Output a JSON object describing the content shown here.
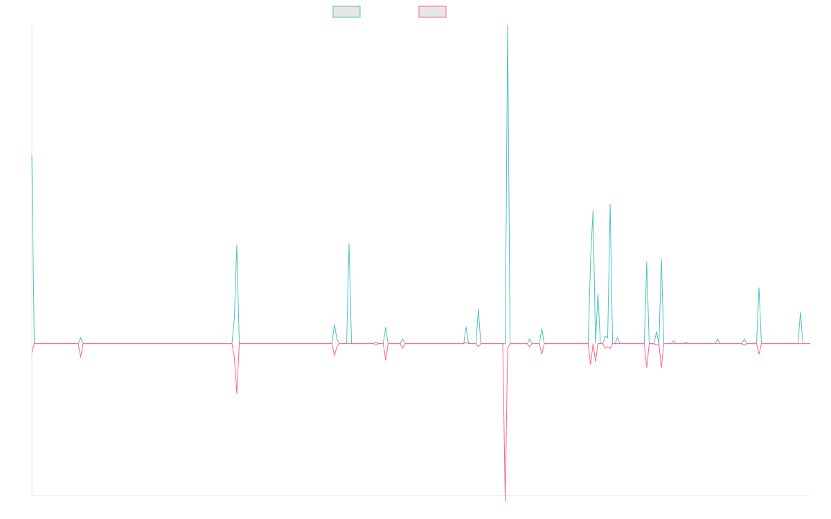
{
  "chart_data": {
    "type": "line",
    "title": "",
    "xlabel": "",
    "ylabel": "",
    "x": [
      0,
      1,
      2,
      3,
      4,
      5,
      6,
      7,
      8,
      9,
      10,
      11,
      12,
      13,
      14,
      15,
      16,
      17,
      18,
      19,
      20,
      21,
      22,
      23,
      24,
      25,
      26,
      27,
      28,
      29,
      30,
      31,
      32,
      33,
      34,
      35,
      36,
      37,
      38,
      39,
      40,
      41,
      42,
      43,
      44,
      45,
      46,
      47,
      48,
      49,
      50,
      51,
      52,
      53,
      54,
      55,
      56,
      57,
      58,
      59,
      60,
      61,
      62,
      63,
      64,
      65,
      66,
      67,
      68,
      69,
      70,
      71,
      72,
      73,
      74,
      75,
      76,
      77,
      78,
      79,
      80,
      81,
      82,
      83,
      84,
      85,
      86,
      87,
      88,
      89,
      90,
      91,
      92,
      93,
      94,
      95,
      96,
      97,
      98,
      99,
      100,
      101,
      102,
      103,
      104,
      105,
      106,
      107,
      108,
      109,
      110,
      111,
      112,
      113,
      114,
      115,
      116,
      117,
      118,
      119,
      120,
      121,
      122,
      123,
      124,
      125,
      126,
      127,
      128,
      129,
      130,
      131,
      132,
      133,
      134,
      135,
      136,
      137,
      138,
      139,
      140,
      141,
      142,
      143,
      144,
      145,
      146,
      147,
      148,
      149,
      150,
      151,
      152,
      153,
      154,
      155,
      156,
      157,
      158,
      159,
      160,
      161,
      162,
      163,
      164,
      165,
      166,
      167,
      168,
      169,
      170,
      171,
      172,
      173,
      174,
      175,
      176,
      177,
      178,
      179,
      180,
      181,
      182,
      183,
      184,
      185,
      186,
      187,
      188,
      189,
      190,
      191,
      192,
      193,
      194,
      195,
      196,
      197,
      198,
      199,
      200,
      201,
      202,
      203,
      204,
      205,
      206,
      207,
      208,
      209,
      210,
      211,
      212,
      213,
      214,
      215,
      216,
      217,
      218,
      219,
      220,
      221,
      222,
      223,
      224,
      225,
      226,
      227,
      228,
      229,
      230,
      231,
      232,
      233,
      234,
      235,
      236,
      237,
      238,
      239,
      240,
      241,
      242,
      243,
      244,
      245,
      246,
      247,
      248,
      249,
      250,
      251,
      252,
      253,
      254,
      255,
      256,
      257,
      258,
      259,
      260,
      261,
      262,
      263,
      264,
      265,
      266,
      267,
      268,
      269,
      270,
      271,
      272,
      273,
      274,
      275,
      276,
      277,
      278,
      279,
      280,
      281,
      282,
      283,
      284,
      285,
      286,
      287,
      288,
      289,
      290,
      291,
      292,
      293,
      294,
      295,
      296,
      297,
      298,
      299,
      300,
      301,
      302,
      303,
      304,
      305,
      306,
      307,
      308,
      309,
      310,
      311,
      312,
      313,
      314,
      315,
      316,
      317,
      318,
      319
    ],
    "ylim": [
      -100,
      210
    ],
    "grid": false,
    "legend_position": "top-center",
    "series": [
      {
        "color": "#4bc0c0",
        "fill": "#e6e6e6",
        "points": [
          [
            0,
            124
          ],
          [
            1,
            0
          ],
          [
            20,
            4
          ],
          [
            21,
            0
          ],
          [
            83,
            17
          ],
          [
            84,
            65
          ],
          [
            85,
            0
          ],
          [
            124,
            13
          ],
          [
            125,
            3
          ],
          [
            126,
            0
          ],
          [
            130,
            66
          ],
          [
            131,
            0
          ],
          [
            140,
            0
          ],
          [
            141,
            -1
          ],
          [
            142,
            0
          ],
          [
            145,
            11
          ],
          [
            146,
            0
          ],
          [
            152,
            3
          ],
          [
            153,
            0
          ],
          [
            178,
            11
          ],
          [
            179,
            0
          ],
          [
            183,
            23
          ],
          [
            184,
            0
          ],
          [
            195,
            210
          ],
          [
            196,
            0
          ],
          [
            204,
            3
          ],
          [
            205,
            0
          ],
          [
            209,
            10
          ],
          [
            210,
            0
          ],
          [
            229,
            56
          ],
          [
            230,
            88
          ],
          [
            231,
            0
          ],
          [
            232,
            33
          ],
          [
            233,
            0
          ],
          [
            235,
            5
          ],
          [
            236,
            4
          ],
          [
            237,
            92
          ],
          [
            238,
            0
          ],
          [
            240,
            4
          ],
          [
            241,
            0
          ],
          [
            244,
            0
          ],
          [
            245,
            0
          ],
          [
            252,
            54
          ],
          [
            253,
            0
          ],
          [
            256,
            8
          ],
          [
            257,
            0
          ],
          [
            258,
            56
          ],
          [
            259,
            0
          ],
          [
            263,
            2
          ],
          [
            264,
            0
          ],
          [
            268,
            1
          ],
          [
            269,
            0
          ],
          [
            281,
            3
          ],
          [
            282,
            0
          ],
          [
            292,
            3
          ],
          [
            293,
            0
          ],
          [
            298,
            37
          ],
          [
            299,
            0
          ],
          [
            315,
            21
          ],
          [
            316,
            0
          ],
          [
            319,
            0
          ]
        ]
      },
      {
        "color": "#ff6384",
        "fill": "#e6e6e6",
        "points": [
          [
            0,
            -6
          ],
          [
            1,
            0
          ],
          [
            20,
            -9
          ],
          [
            21,
            0
          ],
          [
            83,
            -9
          ],
          [
            84,
            -33
          ],
          [
            85,
            0
          ],
          [
            124,
            -8
          ],
          [
            125,
            -2
          ],
          [
            126,
            0
          ],
          [
            130,
            0
          ],
          [
            131,
            0
          ],
          [
            140,
            0
          ],
          [
            141,
            1
          ],
          [
            142,
            0
          ],
          [
            145,
            -11
          ],
          [
            146,
            0
          ],
          [
            152,
            -3
          ],
          [
            153,
            0
          ],
          [
            178,
            1
          ],
          [
            179,
            0
          ],
          [
            183,
            -2
          ],
          [
            184,
            0
          ],
          [
            194,
            -104
          ],
          [
            195,
            -3
          ],
          [
            196,
            0
          ],
          [
            204,
            -2
          ],
          [
            205,
            0
          ],
          [
            209,
            -7
          ],
          [
            210,
            0
          ],
          [
            229,
            -14
          ],
          [
            230,
            0
          ],
          [
            231,
            -12
          ],
          [
            232,
            0
          ],
          [
            235,
            -3
          ],
          [
            236,
            -2
          ],
          [
            237,
            -3
          ],
          [
            238,
            0
          ],
          [
            240,
            0
          ],
          [
            241,
            0
          ],
          [
            244,
            0
          ],
          [
            245,
            0
          ],
          [
            252,
            -16
          ],
          [
            253,
            0
          ],
          [
            256,
            -1
          ],
          [
            257,
            0
          ],
          [
            258,
            -16
          ],
          [
            259,
            0
          ],
          [
            263,
            0
          ],
          [
            264,
            0
          ],
          [
            268,
            0
          ],
          [
            269,
            0
          ],
          [
            281,
            0
          ],
          [
            282,
            0
          ],
          [
            292,
            -1
          ],
          [
            293,
            0
          ],
          [
            298,
            -7
          ],
          [
            299,
            0
          ],
          [
            315,
            0
          ],
          [
            316,
            0
          ],
          [
            319,
            0
          ]
        ]
      }
    ]
  }
}
